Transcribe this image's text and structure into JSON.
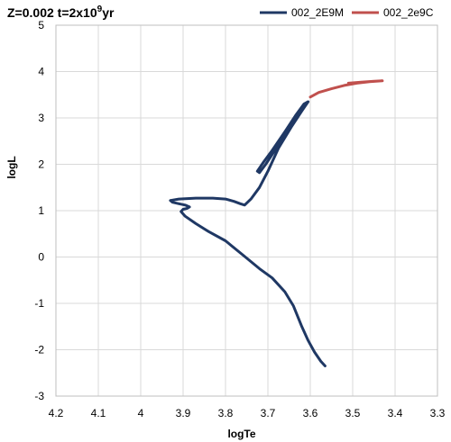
{
  "chart_data": {
    "type": "line",
    "title_main": "Z=0.002 t=2x10",
    "title_sup": "9",
    "title_tail": "yr",
    "xlabel": "logTe",
    "ylabel": "logL",
    "xlim": [
      4.2,
      3.3
    ],
    "ylim": [
      -3,
      5
    ],
    "x_reversed": true,
    "x_ticks": [
      "4.2",
      "4.1",
      "4",
      "3.9",
      "3.8",
      "3.7",
      "3.6",
      "3.5",
      "3.4",
      "3.3"
    ],
    "y_ticks": [
      "-3",
      "-2",
      "-1",
      "0",
      "1",
      "2",
      "3",
      "4",
      "5"
    ],
    "grid": true,
    "legend_position": "top-right",
    "series": [
      {
        "name": "002_2E9M",
        "color": "#1f3864",
        "points": [
          [
            3.565,
            -2.35
          ],
          [
            3.575,
            -2.25
          ],
          [
            3.59,
            -2.05
          ],
          [
            3.605,
            -1.8
          ],
          [
            3.62,
            -1.5
          ],
          [
            3.64,
            -1.05
          ],
          [
            3.66,
            -0.75
          ],
          [
            3.69,
            -0.45
          ],
          [
            3.72,
            -0.25
          ],
          [
            3.76,
            0.05
          ],
          [
            3.8,
            0.35
          ],
          [
            3.84,
            0.55
          ],
          [
            3.87,
            0.72
          ],
          [
            3.895,
            0.88
          ],
          [
            3.905,
            0.98
          ],
          [
            3.9,
            1.03
          ],
          [
            3.89,
            1.05
          ],
          [
            3.885,
            1.08
          ],
          [
            3.895,
            1.12
          ],
          [
            3.91,
            1.15
          ],
          [
            3.925,
            1.18
          ],
          [
            3.93,
            1.22
          ],
          [
            3.91,
            1.25
          ],
          [
            3.87,
            1.27
          ],
          [
            3.83,
            1.27
          ],
          [
            3.8,
            1.25
          ],
          [
            3.78,
            1.2
          ],
          [
            3.765,
            1.15
          ],
          [
            3.755,
            1.12
          ],
          [
            3.74,
            1.25
          ],
          [
            3.72,
            1.5
          ],
          [
            3.7,
            1.85
          ],
          [
            3.675,
            2.35
          ],
          [
            3.645,
            2.8
          ],
          [
            3.62,
            3.15
          ],
          [
            3.605,
            3.35
          ],
          [
            3.615,
            3.3
          ],
          [
            3.635,
            3.05
          ],
          [
            3.66,
            2.7
          ],
          [
            3.69,
            2.3
          ],
          [
            3.71,
            2.05
          ],
          [
            3.725,
            1.85
          ],
          [
            3.72,
            1.82
          ],
          [
            3.705,
            2.0
          ],
          [
            3.68,
            2.35
          ],
          [
            3.65,
            2.75
          ],
          [
            3.625,
            3.1
          ],
          [
            3.61,
            3.3
          ]
        ]
      },
      {
        "name": "002_2e9C",
        "color": "#c0504d",
        "points": [
          [
            3.6,
            3.45
          ],
          [
            3.58,
            3.55
          ],
          [
            3.55,
            3.63
          ],
          [
            3.52,
            3.7
          ],
          [
            3.49,
            3.75
          ],
          [
            3.46,
            3.78
          ],
          [
            3.43,
            3.8
          ],
          [
            3.45,
            3.79
          ],
          [
            3.48,
            3.77
          ],
          [
            3.51,
            3.75
          ]
        ]
      }
    ]
  }
}
